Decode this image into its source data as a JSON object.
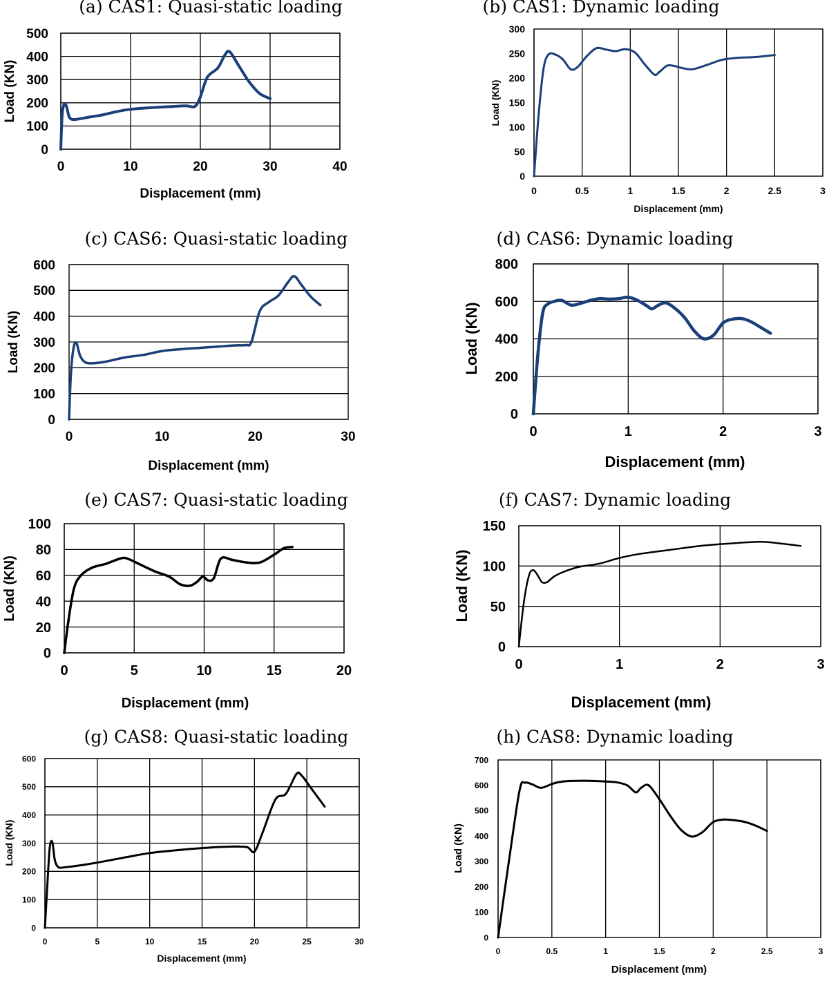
{
  "figure": {
    "panels_count": 8
  },
  "chart_data": [
    {
      "id": "a",
      "type": "line",
      "title": "(a) CAS1: Quasi-static loading",
      "xlabel": "Displacement (mm)",
      "ylabel": "Load (KN)",
      "xlim": [
        0,
        40
      ],
      "ylim": [
        0,
        500
      ],
      "xticks": [
        0,
        10,
        20,
        30,
        40
      ],
      "yticks": [
        0,
        100,
        200,
        300,
        400,
        500
      ],
      "grid": "both",
      "line_color": "#1b3f78",
      "series": [
        {
          "name": "CAS1 quasi-static",
          "x": [
            0,
            0.2,
            0.5,
            0.8,
            1.2,
            1.7,
            2.5,
            4,
            6,
            8,
            10,
            12,
            14,
            16,
            18,
            19.2,
            20,
            21,
            22.5,
            23.5,
            24.2,
            25.5,
            27,
            28.5,
            30
          ],
          "y": [
            0,
            150,
            195,
            185,
            140,
            128,
            130,
            138,
            148,
            162,
            172,
            177,
            181,
            184,
            187,
            184,
            225,
            310,
            350,
            405,
            420,
            360,
            290,
            240,
            218
          ]
        }
      ]
    },
    {
      "id": "b",
      "type": "line",
      "title": "(b) CAS1: Dynamic loading",
      "xlabel": "Displacement (mm)",
      "ylabel": "Load (KN)",
      "xlim": [
        0,
        3
      ],
      "ylim": [
        0,
        300
      ],
      "xticks": [
        "0",
        "0.5",
        "1",
        "1.5",
        "2",
        "2.5",
        "3"
      ],
      "yticks": [
        0,
        50,
        100,
        150,
        200,
        250,
        300
      ],
      "grid": "vertical",
      "line_color": "#1b3f78",
      "series": [
        {
          "name": "CAS1 dynamic",
          "x": [
            0,
            0.05,
            0.1,
            0.15,
            0.22,
            0.3,
            0.38,
            0.45,
            0.55,
            0.65,
            0.75,
            0.85,
            0.95,
            1.05,
            1.15,
            1.25,
            1.3,
            1.38,
            1.45,
            1.55,
            1.65,
            1.8,
            1.95,
            2.1,
            2.3,
            2.5
          ],
          "y": [
            0,
            130,
            220,
            248,
            248,
            238,
            218,
            222,
            245,
            261,
            258,
            255,
            259,
            252,
            228,
            207,
            212,
            225,
            225,
            220,
            218,
            227,
            237,
            241,
            243,
            247
          ]
        }
      ]
    },
    {
      "id": "c",
      "type": "line",
      "title": "(c) CAS6: Quasi-static loading",
      "xlabel": "Displacement (mm)",
      "ylabel": "Load (KN)",
      "xlim": [
        0,
        30
      ],
      "ylim": [
        0,
        600
      ],
      "xticks": [
        0,
        10,
        20,
        30
      ],
      "yticks": [
        0,
        100,
        200,
        300,
        400,
        500,
        600
      ],
      "grid": "horizontal",
      "line_color": "#1b3f78",
      "series": [
        {
          "name": "CAS6 quasi-static",
          "x": [
            0,
            0.2,
            0.5,
            0.8,
            1.2,
            1.8,
            2.8,
            4,
            6,
            8,
            10,
            12,
            14,
            16,
            18,
            19,
            19.6,
            20.5,
            21.5,
            22.5,
            23.5,
            24.2,
            25,
            26,
            27
          ],
          "y": [
            0,
            180,
            280,
            295,
            245,
            220,
            218,
            224,
            240,
            250,
            265,
            272,
            277,
            282,
            287,
            288,
            300,
            420,
            455,
            480,
            530,
            555,
            520,
            475,
            443
          ]
        }
      ]
    },
    {
      "id": "d",
      "type": "line",
      "title": "(d) CAS6: Dynamic loading",
      "xlabel": "Displacement (mm)",
      "ylabel": "Load (KN)",
      "xlim": [
        0,
        3
      ],
      "ylim": [
        0,
        800
      ],
      "xticks": [
        0,
        1,
        2,
        3
      ],
      "yticks": [
        0,
        200,
        400,
        600,
        800
      ],
      "grid": "both",
      "line_color": "#1b3f78",
      "series": [
        {
          "name": "CAS6 dynamic",
          "x": [
            0,
            0.05,
            0.1,
            0.15,
            0.22,
            0.3,
            0.4,
            0.5,
            0.6,
            0.7,
            0.8,
            0.9,
            1.0,
            1.1,
            1.2,
            1.25,
            1.32,
            1.4,
            1.5,
            1.6,
            1.7,
            1.8,
            1.9,
            2.0,
            2.1,
            2.2,
            2.3,
            2.4,
            2.5
          ],
          "y": [
            0,
            330,
            540,
            585,
            600,
            605,
            580,
            590,
            605,
            615,
            612,
            615,
            622,
            605,
            575,
            560,
            580,
            592,
            560,
            510,
            440,
            400,
            420,
            485,
            505,
            508,
            490,
            460,
            430
          ]
        }
      ]
    },
    {
      "id": "e",
      "type": "line",
      "title": "(e) CAS7: Quasi-static loading",
      "xlabel": "Displacement (mm)",
      "ylabel": "Load (KN)",
      "xlim": [
        0,
        20
      ],
      "ylim": [
        0,
        100
      ],
      "xticks": [
        0,
        5,
        10,
        15,
        20
      ],
      "yticks": [
        0,
        20,
        40,
        60,
        80,
        100
      ],
      "grid": "both",
      "line_color": "#000000",
      "series": [
        {
          "name": "CAS7 quasi-static",
          "x": [
            0,
            0.3,
            0.7,
            1.2,
            2,
            3,
            4,
            4.5,
            5.5,
            6.5,
            7.5,
            8.3,
            9,
            9.5,
            9.9,
            10.3,
            10.7,
            11.2,
            12,
            13,
            14,
            15,
            15.7,
            16.3
          ],
          "y": [
            0,
            25,
            50,
            60,
            66,
            69,
            73,
            73,
            68,
            63,
            59,
            53,
            52,
            55,
            59,
            56,
            58,
            73,
            72,
            70,
            70,
            76,
            81,
            82
          ]
        }
      ]
    },
    {
      "id": "f",
      "type": "line",
      "title": "(f) CAS7: Dynamic loading",
      "xlabel": "Displacement (mm)",
      "ylabel": "Load (KN)",
      "xlim": [
        0,
        3
      ],
      "ylim": [
        0,
        150
      ],
      "xticks": [
        0,
        1,
        2,
        3
      ],
      "yticks": [
        0,
        50,
        100,
        150
      ],
      "grid": "both",
      "line_color": "#000000",
      "series": [
        {
          "name": "CAS7 dynamic",
          "x": [
            0,
            0.05,
            0.1,
            0.14,
            0.18,
            0.23,
            0.28,
            0.35,
            0.45,
            0.6,
            0.8,
            1.0,
            1.2,
            1.5,
            1.8,
            2.1,
            2.4,
            2.6,
            2.8
          ],
          "y": [
            0,
            55,
            88,
            95,
            90,
            80,
            80,
            87,
            93,
            99,
            103,
            110,
            115,
            120,
            125,
            128,
            130,
            128,
            125
          ]
        }
      ]
    },
    {
      "id": "g",
      "type": "line",
      "title": "(g) CAS8: Quasi-static loading",
      "xlabel": "Displacement (mm)",
      "ylabel": "Load (KN)",
      "xlim": [
        0,
        30
      ],
      "ylim": [
        0,
        600
      ],
      "xticks": [
        0,
        5,
        10,
        15,
        20,
        25,
        30
      ],
      "yticks": [
        0,
        100,
        200,
        300,
        400,
        500,
        600
      ],
      "grid": "both",
      "line_color": "#000000",
      "series": [
        {
          "name": "CAS8 quasi-static",
          "x": [
            0,
            0.2,
            0.45,
            0.7,
            0.95,
            1.3,
            2,
            4,
            6,
            8,
            10,
            12,
            14,
            16,
            18,
            19.3,
            20,
            20.8,
            22,
            23,
            24,
            24.5,
            25.5,
            26.7
          ],
          "y": [
            0,
            130,
            280,
            305,
            240,
            215,
            215,
            225,
            238,
            252,
            265,
            273,
            280,
            285,
            288,
            286,
            270,
            340,
            455,
            475,
            545,
            540,
            490,
            430
          ]
        }
      ]
    },
    {
      "id": "h",
      "type": "line",
      "title": "(h) CAS8: Dynamic loading",
      "xlabel": "Displacement (mm)",
      "ylabel": "Load (KN)",
      "xlim": [
        0,
        3
      ],
      "ylim": [
        0,
        700
      ],
      "xticks": [
        "0",
        "0.5",
        "1",
        "1.5",
        "2",
        "2.5",
        "3"
      ],
      "yticks": [
        0,
        100,
        200,
        300,
        400,
        500,
        600,
        700
      ],
      "grid": "vertical",
      "line_color": "#000000",
      "series": [
        {
          "name": "CAS8 dynamic",
          "x": [
            0,
            0.1,
            0.2,
            0.25,
            0.32,
            0.4,
            0.5,
            0.6,
            0.8,
            1.0,
            1.1,
            1.2,
            1.28,
            1.33,
            1.4,
            1.5,
            1.6,
            1.7,
            1.8,
            1.9,
            2.0,
            2.1,
            2.2,
            2.3,
            2.4,
            2.5
          ],
          "y": [
            0,
            300,
            580,
            610,
            603,
            590,
            605,
            615,
            618,
            615,
            612,
            600,
            572,
            590,
            600,
            545,
            480,
            425,
            398,
            415,
            455,
            465,
            462,
            455,
            440,
            420
          ]
        }
      ]
    }
  ]
}
